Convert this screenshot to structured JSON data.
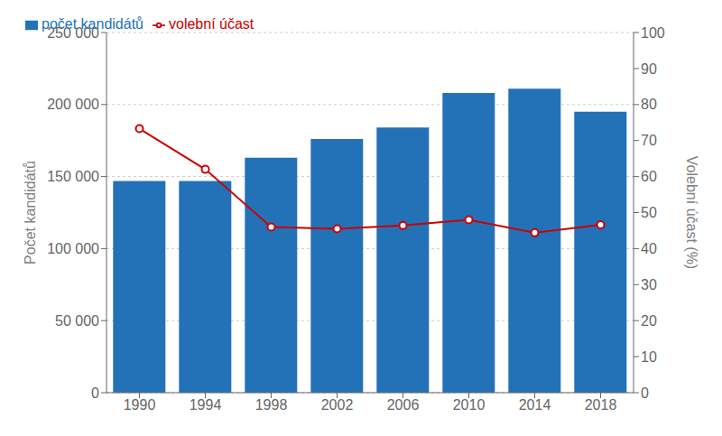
{
  "chart_data": {
    "type": "bar",
    "categories": [
      "1990",
      "1994",
      "1998",
      "2002",
      "2006",
      "2010",
      "2014",
      "2018"
    ],
    "series": [
      {
        "name": "počet kandidátů",
        "type": "bar",
        "color": "#2372b8",
        "values": [
          147000,
          147000,
          163000,
          176000,
          184000,
          208000,
          211000,
          195000
        ]
      },
      {
        "name": "volební účast",
        "type": "line",
        "color": "#cc0000",
        "marker": "circle",
        "axis": "y2",
        "values": [
          73.3,
          62.0,
          46.0,
          45.5,
          46.4,
          48.0,
          44.4,
          46.6
        ]
      }
    ],
    "ylabel": "Počet kandidátů",
    "y2label": "Volební účast (%)",
    "ylim": [
      0,
      250000
    ],
    "yticks": [
      0,
      {
        "value": 50000,
        "label": "50 000"
      },
      {
        "value": 100000,
        "label": "100 000"
      },
      {
        "value": 150000,
        "label": "150 000"
      },
      {
        "value": 200000,
        "label": "200 000"
      },
      {
        "value": 250000,
        "label": "250 000"
      }
    ],
    "y2lim": [
      0,
      100
    ],
    "y2ticks": [
      0,
      10,
      20,
      30,
      40,
      50,
      60,
      70,
      80,
      90,
      100
    ],
    "grid": true,
    "legend": "upper left"
  }
}
